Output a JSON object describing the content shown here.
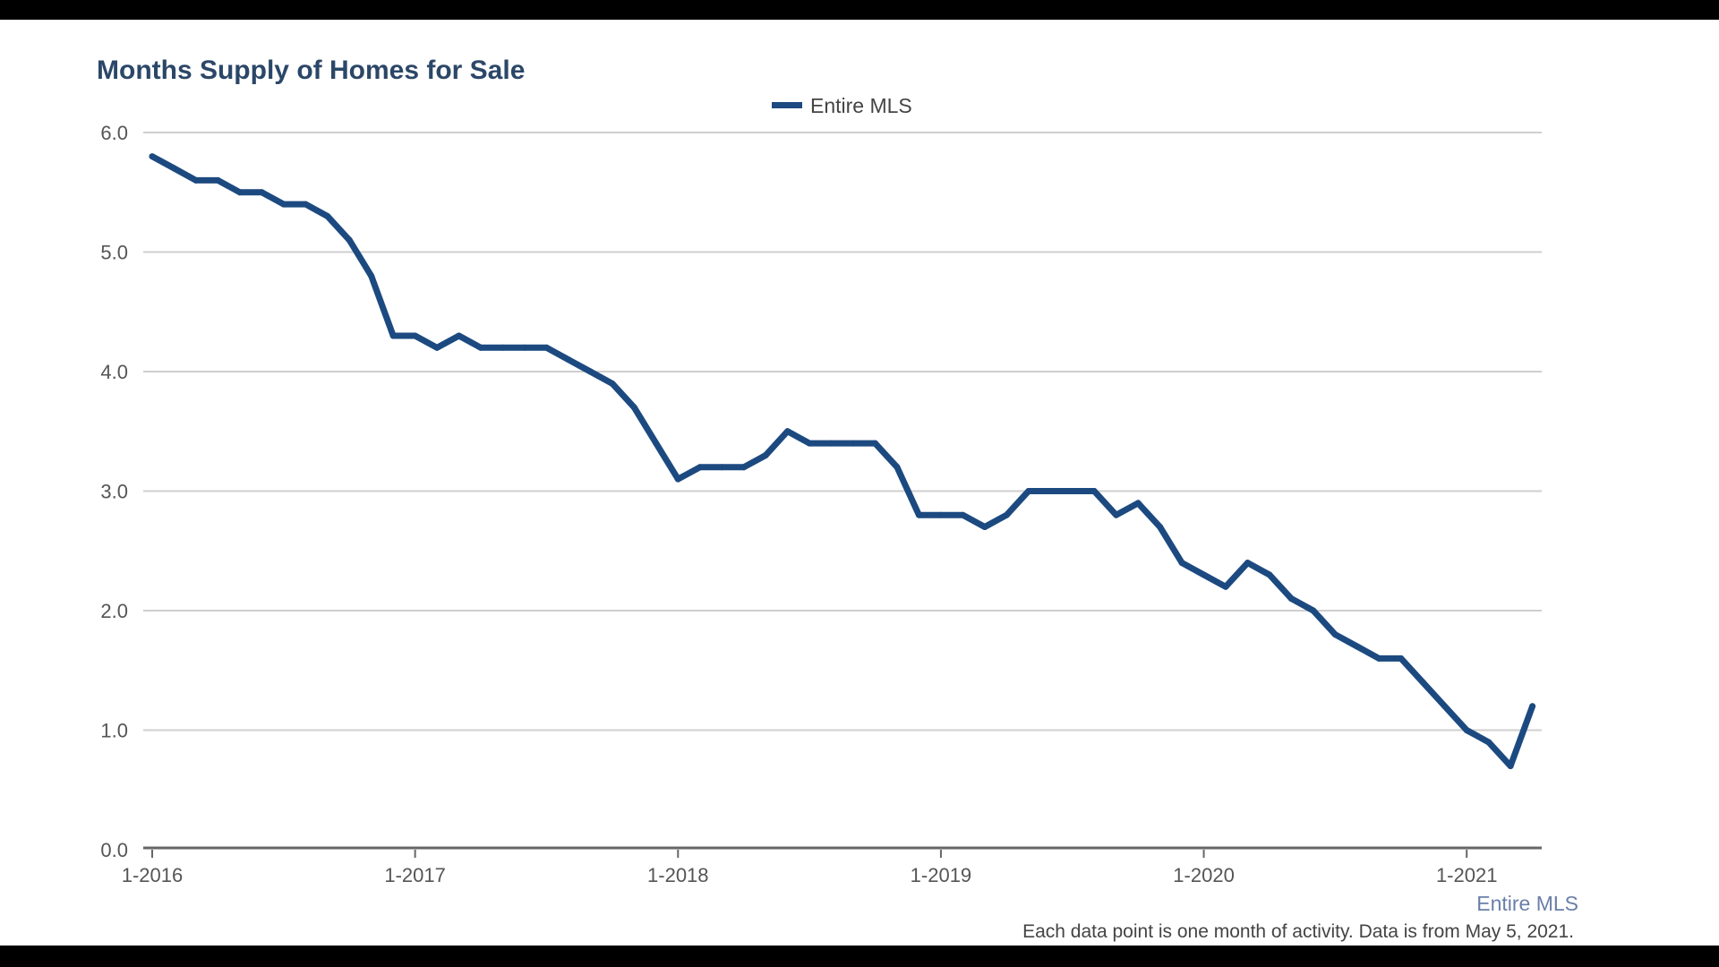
{
  "chart_data": {
    "type": "line",
    "title": "Months Supply of Homes for Sale",
    "xlabel": "",
    "ylabel": "",
    "ylim": [
      0,
      6
    ],
    "yticks": [
      "0.0",
      "1.0",
      "2.0",
      "3.0",
      "4.0",
      "5.0",
      "6.0"
    ],
    "xticks": [
      "1-2016",
      "1-2017",
      "1-2018",
      "1-2019",
      "1-2020",
      "1-2021"
    ],
    "x_start": "1-2016",
    "x_end": "4-2021",
    "grid": "horizontal",
    "legend_position": "top-center",
    "series": [
      {
        "name": "Entire MLS",
        "color": "#1c4a80",
        "values": [
          5.8,
          5.7,
          5.6,
          5.6,
          5.5,
          5.5,
          5.4,
          5.4,
          5.3,
          5.1,
          4.8,
          4.3,
          4.3,
          4.2,
          4.3,
          4.2,
          4.2,
          4.2,
          4.2,
          4.1,
          4.0,
          3.9,
          3.7,
          3.4,
          3.1,
          3.2,
          3.2,
          3.2,
          3.3,
          3.5,
          3.4,
          3.4,
          3.4,
          3.4,
          3.2,
          2.8,
          2.8,
          2.8,
          2.7,
          2.8,
          3.0,
          3.0,
          3.0,
          3.0,
          2.8,
          2.9,
          2.7,
          2.4,
          2.3,
          2.2,
          2.4,
          2.3,
          2.1,
          2.0,
          1.8,
          1.7,
          1.6,
          1.6,
          1.4,
          1.2,
          1.0,
          0.9,
          0.7,
          1.2
        ]
      }
    ],
    "axis_caption": "Entire MLS",
    "footnote": "Each data point is one month of activity. Data is from May 5, 2021."
  }
}
